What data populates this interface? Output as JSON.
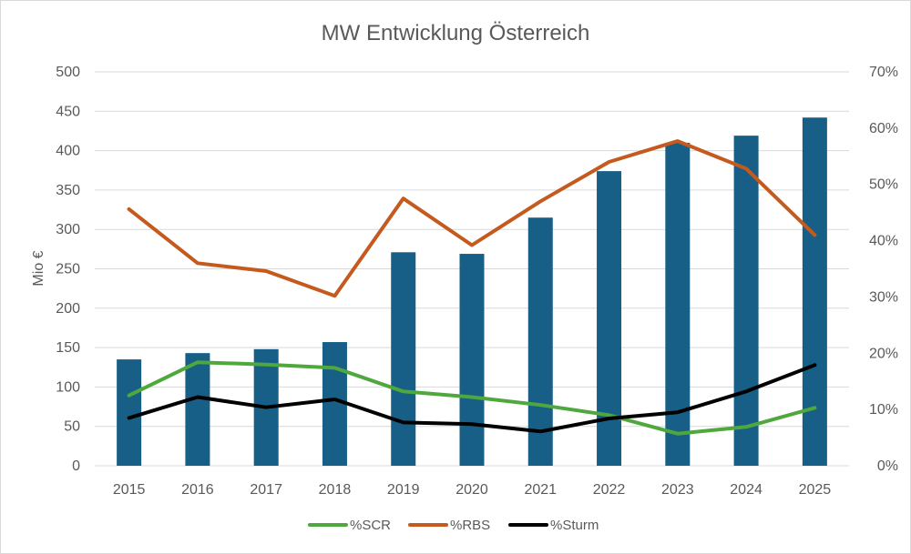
{
  "chart_data": {
    "type": "bar",
    "title": "MW Entwicklung Österreich",
    "ylabel": "Mio €",
    "ylim": [
      0,
      500
    ],
    "y_ticks": [
      "0",
      "50",
      "100",
      "150",
      "200",
      "250",
      "300",
      "350",
      "400",
      "450",
      "500"
    ],
    "y2lim": [
      0,
      0.7
    ],
    "y2_ticks": [
      "0%",
      "10%",
      "20%",
      "30%",
      "40%",
      "50%",
      "60%",
      "70%"
    ],
    "categories": [
      "2015",
      "2016",
      "2017",
      "2018",
      "2019",
      "2020",
      "2021",
      "2022",
      "2023",
      "2024",
      "2025"
    ],
    "bars": {
      "color": "#175f86",
      "values": [
        135,
        143,
        148,
        157,
        271,
        269,
        315,
        374,
        410,
        419,
        442
      ]
    },
    "series": [
      {
        "name": "%SCR",
        "color": "#4fa83d",
        "values": [
          0.125,
          0.184,
          0.18,
          0.174,
          0.132,
          0.122,
          0.108,
          0.09,
          0.057,
          0.069,
          0.103
        ]
      },
      {
        "name": "%RBS",
        "color": "#c55a1e",
        "values": [
          0.456,
          0.36,
          0.346,
          0.302,
          0.475,
          0.392,
          0.47,
          0.54,
          0.577,
          0.528,
          0.41
        ]
      },
      {
        "name": "%Sturm",
        "color": "#000000",
        "values": [
          0.085,
          0.122,
          0.104,
          0.118,
          0.077,
          0.074,
          0.061,
          0.084,
          0.095,
          0.132,
          0.179
        ]
      }
    ],
    "grid": true,
    "legend_position": "bottom"
  }
}
